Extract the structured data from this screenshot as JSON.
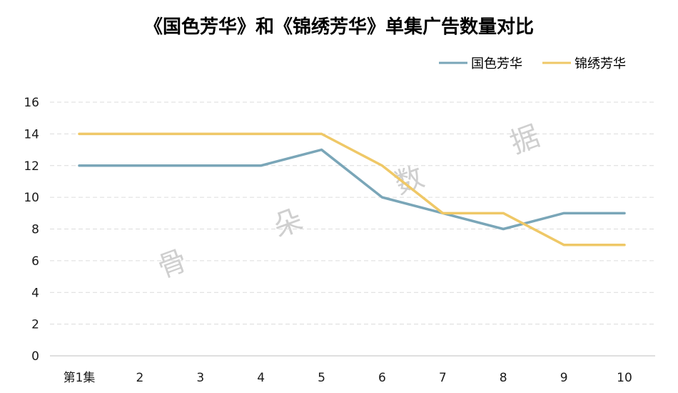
{
  "chart_data": {
    "type": "line",
    "title": "《国色芳华》和《锦绣芳华》单集广告数量对比",
    "categories": [
      "第1集",
      "2",
      "3",
      "4",
      "5",
      "6",
      "7",
      "8",
      "9",
      "10"
    ],
    "series": [
      {
        "name": "国色芳华",
        "color": "#7aa6b8",
        "values": [
          12,
          12,
          12,
          12,
          13,
          10,
          9,
          8,
          9,
          9
        ]
      },
      {
        "name": "锦绣芳华",
        "color": "#efc867",
        "values": [
          14,
          14,
          14,
          14,
          14,
          12,
          9,
          9,
          7,
          7
        ]
      }
    ],
    "yticks": [
      0,
      2,
      4,
      6,
      8,
      10,
      12,
      14,
      16
    ],
    "ylim": [
      0,
      16
    ],
    "grid": true,
    "legend_position": "top-right"
  },
  "watermark": [
    "骨",
    "朵",
    "数",
    "据"
  ]
}
